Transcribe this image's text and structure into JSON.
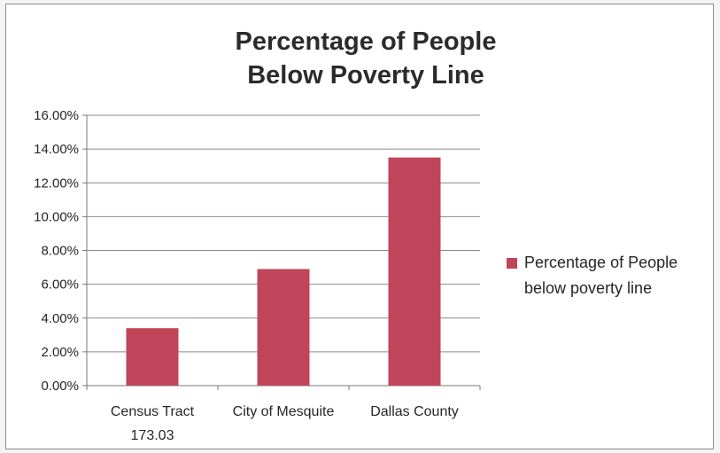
{
  "chart_data": {
    "type": "bar",
    "title_lines": [
      "Percentage of People",
      "Below Poverty Line"
    ],
    "categories": [
      [
        "Census Tract",
        "173.03"
      ],
      [
        "City of Mesquite"
      ],
      [
        "Dallas County"
      ]
    ],
    "series": [
      {
        "name": "Percentage of People below poverty line",
        "values": [
          3.4,
          6.9,
          13.5
        ],
        "color": "#c0455a"
      }
    ],
    "y_ticks": [
      "0.00%",
      "2.00%",
      "4.00%",
      "6.00%",
      "8.00%",
      "10.00%",
      "12.00%",
      "14.00%",
      "16.00%"
    ],
    "ylim": [
      0,
      16
    ],
    "ylabel": "",
    "xlabel": "",
    "grid": true,
    "legend_position": "right"
  },
  "legend": {
    "label_line1": "Percentage of People",
    "label_line2": "below poverty line"
  }
}
